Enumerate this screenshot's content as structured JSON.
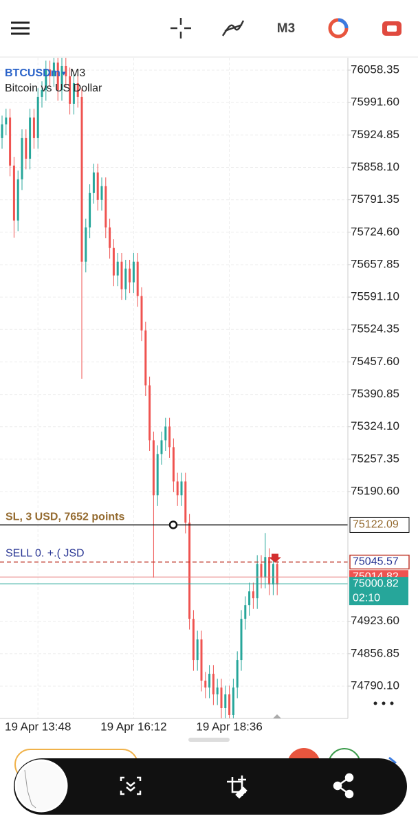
{
  "toolbar": {
    "timeframe": "M3"
  },
  "chart": {
    "type": "candlestick",
    "symbol": "BTCUSDm",
    "timeframe": "M3",
    "description": "Bitcoin vs US Dollar",
    "ylim": [
      74723.6,
      76083.8
    ],
    "yticks": [
      76058.35,
      {
        "value": 75991.6,
        "label": "75991.60"
      },
      75924.85,
      {
        "value": 75858.1,
        "label": "75858.10"
      },
      75791.35,
      {
        "value": 75724.6,
        "label": "75724.60"
      },
      75657.85,
      {
        "value": 75591.1,
        "label": "75591.10"
      },
      75524.35,
      {
        "value": 75457.6,
        "label": "75457.60"
      },
      75390.85,
      {
        "value": 75324.1,
        "label": "75324.10"
      },
      75257.35,
      {
        "value": 75190.6,
        "label": "75190.60"
      },
      {
        "value": 74923.6,
        "label": "74923.60"
      },
      74856.85,
      {
        "value": 74790.1,
        "label": "74790.10"
      }
    ],
    "xticks": [
      {
        "value": 9,
        "label": "19 Apr 13:48"
      },
      {
        "value": 33,
        "label": "19 Apr 16:12"
      },
      {
        "value": 57,
        "label": "19 Apr 18:36"
      }
    ],
    "grid": true,
    "up_color": "#26a69a",
    "down_color": "#ef5350",
    "open": [
      75918.37,
      75946.65,
      75960.79,
      75861.82,
      75748.71,
      75833.54,
      75918.37,
      75875.96,
      75960.79,
      75918.37,
      76003.21,
      76017.35,
      76059.76,
      76045.62,
      76073.9,
      76017.35,
      76066.83,
      76045.62,
      75989.07,
      76031.49,
      76003.21,
      75663.87,
      75734.57,
      75805.26,
      75847.68,
      75791.12,
      75819.4,
      75734.57,
      75692.15,
      75635.59,
      75663.87,
      75607.32,
      75649.73,
      75621.45,
      75663.87,
      75593.18,
      75522.48,
      75409.37,
      75296.26,
      75183.15,
      75267.98,
      75296.26,
      75324.54,
      75282.12,
      75211.42,
      75183.15,
      75211.42,
      75126.59,
      74928.64,
      74843.81,
      74886.23,
      74801.39,
      74787.25,
      74815.53,
      74773.12,
      74787.25,
      74744.84,
      74773.12,
      74730.7,
      74787.25,
      74843.81,
      74928.64,
      74956.92,
      74985.2,
      74971.06,
      75041.76,
      75013.48,
      75055.89,
      74999.34,
      75041.76
    ],
    "high": [
      75964.65,
      75978.79,
      75978.79,
      75879.82,
      75851.54,
      75936.37,
      75936.37,
      75978.79,
      75978.79,
      76021.21,
      76035.35,
      76077.76,
      76077.76,
      76091.9,
      76091.9,
      76084.83,
      76084.83,
      76063.62,
      76049.49,
      76049.49,
      76021.21,
      75752.57,
      75823.26,
      75865.68,
      75865.68,
      75837.4,
      75837.4,
      75752.57,
      75710.15,
      75681.87,
      75681.87,
      75667.73,
      75667.73,
      75681.87,
      75681.87,
      75611.18,
      75540.48,
      75427.37,
      75314.26,
      75285.98,
      75314.26,
      75342.54,
      75342.54,
      75300.12,
      75229.42,
      75229.42,
      75229.42,
      75144.59,
      74946.64,
      74904.23,
      74904.23,
      74819.39,
      74833.53,
      74833.53,
      74805.25,
      74805.25,
      74791.12,
      74791.12,
      74805.25,
      74861.81,
      74946.64,
      74974.92,
      75003.2,
      75003.2,
      75059.76,
      75059.76,
      75105.4,
      75073.89,
      75059.76,
      75059.76
    ],
    "low": [
      75896.37,
      75924.65,
      75839.82,
      75713.4,
      75726.71,
      75811.54,
      75853.96,
      75853.96,
      75896.37,
      75896.37,
      75981.21,
      75995.35,
      76023.62,
      76023.62,
      75995.35,
      75995.35,
      76023.62,
      75967.07,
      75967.07,
      75981.21,
      75423.0,
      75641.87,
      75712.57,
      75783.26,
      75769.12,
      75769.12,
      75712.57,
      75670.15,
      75613.59,
      75613.59,
      75585.32,
      75585.32,
      75599.45,
      75599.45,
      75571.18,
      75500.48,
      75387.37,
      75274.26,
      75013.48,
      75161.15,
      75245.98,
      75274.26,
      75260.12,
      75189.42,
      75161.15,
      75161.15,
      75104.59,
      74906.64,
      74821.81,
      74821.81,
      74779.39,
      74765.25,
      74765.25,
      74751.12,
      74751.12,
      74722.84,
      74722.84,
      74708.7,
      74708.7,
      74765.25,
      74821.81,
      74906.64,
      74934.92,
      74949.06,
      74949.06,
      74991.48,
      74991.48,
      74977.34,
      74977.34,
      74977.34
    ],
    "close": [
      75946.65,
      75960.79,
      75861.82,
      75748.71,
      75833.54,
      75918.37,
      75875.96,
      75960.79,
      75918.37,
      76003.21,
      76017.35,
      76059.76,
      76045.62,
      76073.9,
      76017.35,
      76066.83,
      76045.62,
      75989.07,
      76031.49,
      76003.21,
      75663.87,
      75734.57,
      75805.26,
      75847.68,
      75791.12,
      75819.4,
      75734.57,
      75692.15,
      75635.59,
      75663.87,
      75607.32,
      75649.73,
      75621.45,
      75663.87,
      75593.18,
      75522.48,
      75409.37,
      75296.26,
      75183.15,
      75267.98,
      75296.26,
      75324.54,
      75282.12,
      75211.42,
      75183.15,
      75211.42,
      75126.59,
      74928.64,
      74843.81,
      74886.23,
      74801.39,
      74787.25,
      74815.53,
      74773.12,
      74787.25,
      74744.84,
      74773.12,
      74730.7,
      74787.25,
      74843.81,
      74928.64,
      74956.92,
      74985.2,
      74971.06,
      75041.76,
      75013.48,
      75055.89,
      74999.34,
      75041.76,
      74999.34
    ],
    "stop_loss": {
      "value": 75122.09,
      "label": "SL,    3 USD, 7652 points"
    },
    "order": {
      "value": 75045.57,
      "label": "SELL 0.        +.(  JSD"
    },
    "ask": 75014.82,
    "bid": 75000.82,
    "countdown": "02:10"
  }
}
